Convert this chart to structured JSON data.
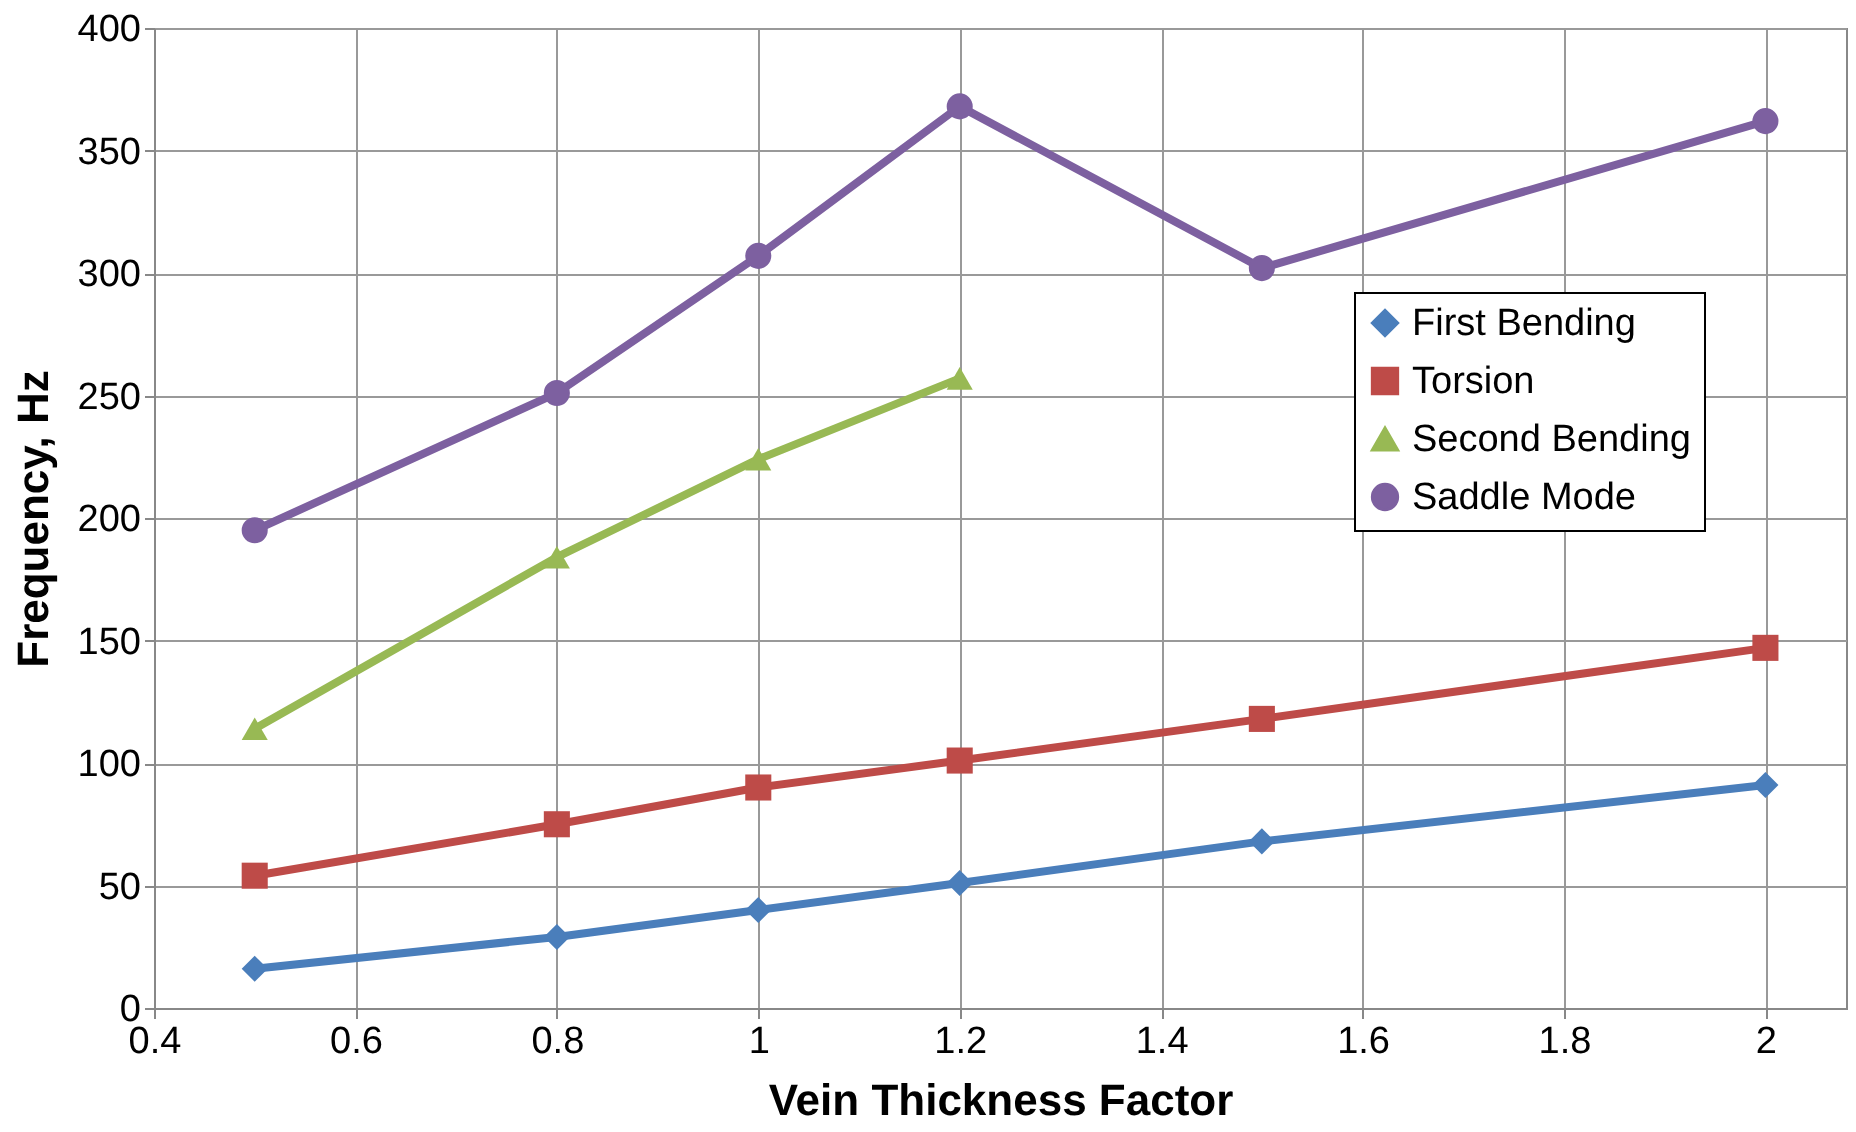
{
  "chart_data": {
    "type": "line",
    "xlabel": "Vein Thickness Factor",
    "ylabel": "Frequency, Hz",
    "xlim": [
      0.4,
      2.08
    ],
    "xticks": [
      0.4,
      0.6,
      0.8,
      1,
      1.2,
      1.4,
      1.6,
      1.8,
      2
    ],
    "ylim": [
      0,
      400
    ],
    "yticks": [
      0,
      50,
      100,
      150,
      200,
      250,
      300,
      350,
      400
    ],
    "grid": true,
    "legend": "right",
    "series": [
      {
        "name": "First Bending",
        "color": "#4a7ebb",
        "marker": "diamond",
        "x": [
          0.5,
          0.8,
          1,
          1.2,
          1.5,
          2
        ],
        "values": [
          16,
          29,
          40,
          51,
          68,
          91
        ]
      },
      {
        "name": "Torsion",
        "color": "#be4b48",
        "marker": "square",
        "x": [
          0.5,
          0.8,
          1,
          1.2,
          1.5,
          2
        ],
        "values": [
          54,
          75,
          90,
          101,
          118,
          147
        ]
      },
      {
        "name": "Second Bending",
        "color": "#98b954",
        "marker": "triangle",
        "x": [
          0.5,
          0.8,
          1,
          1.2
        ],
        "values": [
          114,
          184,
          224,
          257
        ]
      },
      {
        "name": "Saddle Mode",
        "color": "#7d60a0",
        "marker": "circle",
        "x": [
          0.5,
          0.8,
          1,
          1.2,
          1.5,
          2
        ],
        "values": [
          195,
          251,
          307,
          368,
          302,
          362
        ]
      }
    ]
  }
}
